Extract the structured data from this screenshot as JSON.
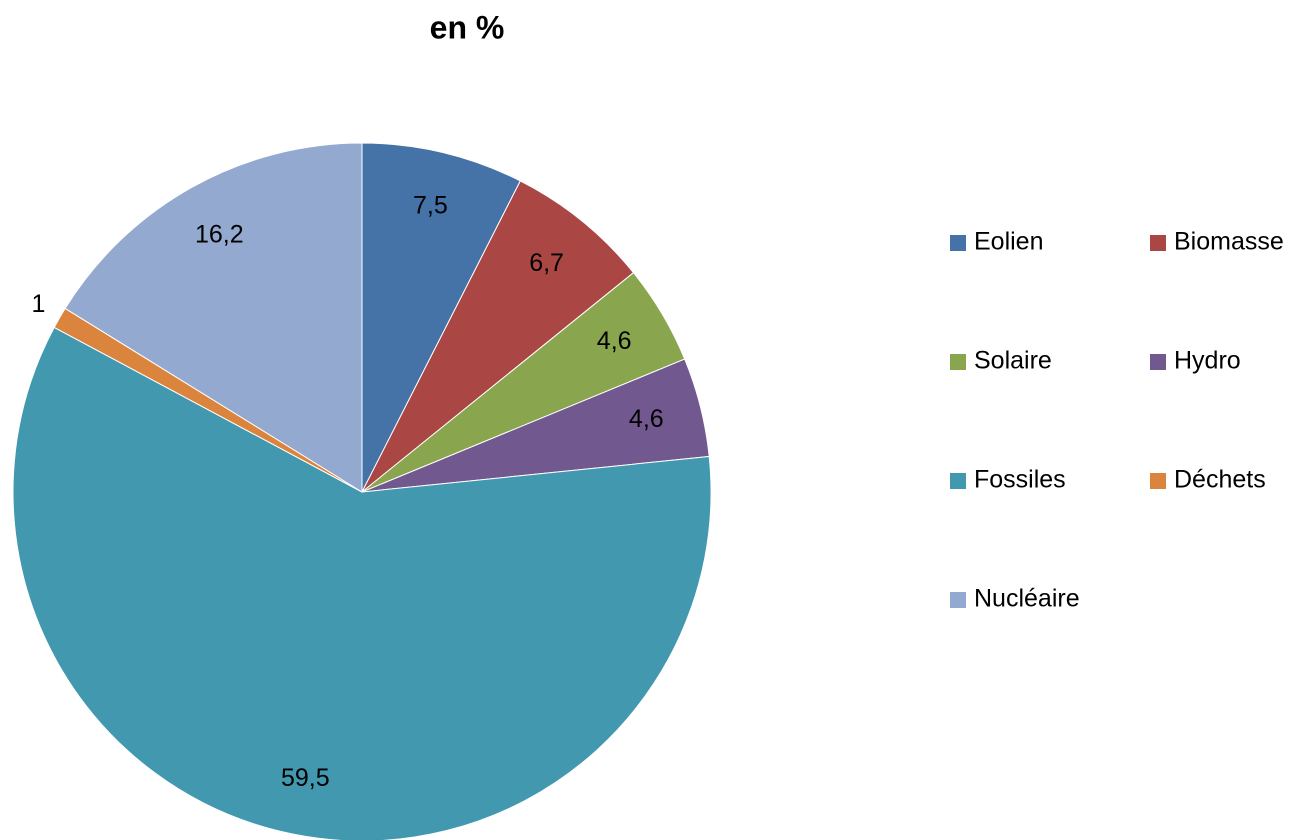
{
  "chart_data": {
    "type": "pie",
    "title": "en %",
    "categories": [
      "Eolien",
      "Biomasse",
      "Solaire",
      "Hydro",
      "Fossiles",
      "Déchets",
      "Nucléaire"
    ],
    "values": [
      7.5,
      6.7,
      4.6,
      4.6,
      59.5,
      1,
      16.2
    ],
    "value_labels": [
      "7,5",
      "6,7",
      "4,6",
      "4,6",
      "59,5",
      "1",
      "16,2"
    ],
    "colors": [
      "#4572a7",
      "#aa4643",
      "#89a54e",
      "#71588f",
      "#4198af",
      "#db843d",
      "#93a9cf"
    ],
    "legend": "right"
  }
}
